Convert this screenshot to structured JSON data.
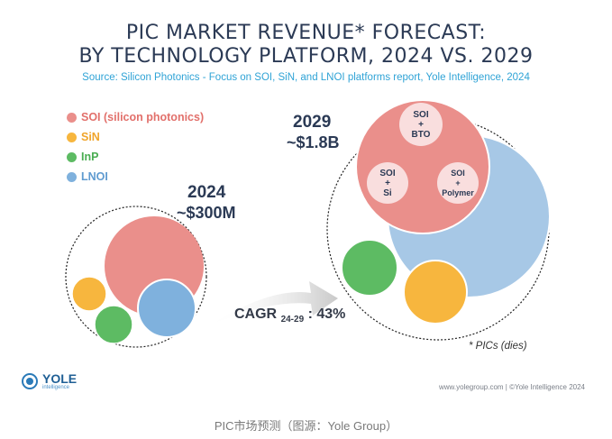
{
  "chart_data": {
    "type": "bubble",
    "title": "PIC MARKET REVENUE* FORECAST:",
    "subtitle": "BY TECHNOLOGY PLATFORM, 2024 VS. 2029",
    "source": "Source: Silicon Photonics  - Focus on SOI, SiN, and LNOI platforms  report, Yole Intelligence, 2024",
    "legend": [
      {
        "label": "SOI (silicon photonics)",
        "color": "#ea8f8b"
      },
      {
        "label": "SiN",
        "color": "#f7b63e"
      },
      {
        "label": "InP",
        "color": "#5dbb63"
      },
      {
        "label": "LNOI",
        "color": "#7fb1dd"
      }
    ],
    "groups": [
      {
        "year": "2024",
        "total_label": "~$300M"
      },
      {
        "year": "2029",
        "total_label": "~$1.8B",
        "soi_sub_segments": [
          {
            "line1": "SOI",
            "line2": "+",
            "line3": "BTO"
          },
          {
            "line1": "SOI",
            "line2": "+",
            "line3": "Si"
          },
          {
            "line1": "SOI",
            "line2": "+",
            "line3": "Polymer"
          }
        ]
      }
    ],
    "cagr_label": "CAGR",
    "cagr_sub": "24-29",
    "cagr_value": " : 43%",
    "note": "* PICs (dies)"
  },
  "footer": {
    "logo_name": "YOLE",
    "logo_sub": "intelligence",
    "right": "www.yolegroup.com | ©Yole Intelligence 2024",
    "caption": "PIC市场预测（图源：Yole Group）"
  },
  "colors": {
    "soi": "#ea8f8b",
    "sin": "#f7b63e",
    "inp": "#5dbb63",
    "lnoi": "#7fb1dd",
    "title": "#2b3a55",
    "source": "#2fa3d6"
  }
}
